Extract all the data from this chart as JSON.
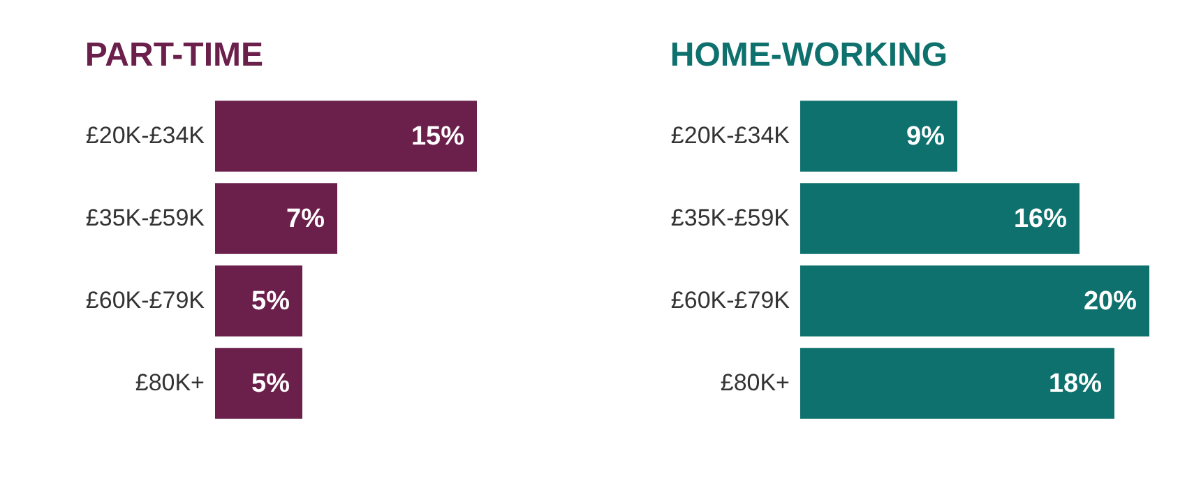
{
  "chart_data": [
    {
      "type": "bar",
      "orientation": "horizontal",
      "title": "PART-TIME",
      "categories": [
        "£20K-£34K",
        "£35K-£59K",
        "£60K-£79K",
        "£80K+"
      ],
      "values": [
        15,
        7,
        5,
        5
      ],
      "value_labels": [
        "15%",
        "7%",
        "5%",
        "5%"
      ],
      "color": "#6b1f4b",
      "tick_labels": "y"
    },
    {
      "type": "bar",
      "orientation": "horizontal",
      "title": "HOME-WORKING",
      "categories": [
        "£20K-£34K",
        "£35K-£59K",
        "£60K-£79K",
        "£80K+"
      ],
      "values": [
        9,
        16,
        20,
        18
      ],
      "value_labels": [
        "9%",
        "16%",
        "20%",
        "18%"
      ],
      "color": "#0e716d",
      "tick_labels": "y"
    }
  ]
}
